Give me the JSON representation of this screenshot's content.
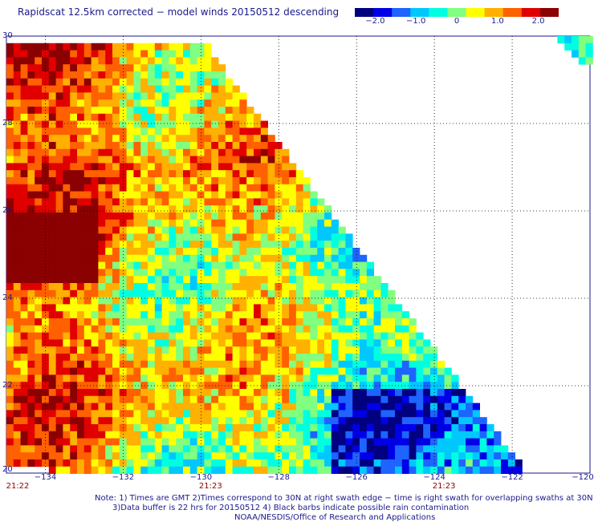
{
  "title": "Rapidscat 12.5km corrected − model winds 20150512 descending",
  "colorbar": {
    "ticks": [
      "−2.0",
      "−1.0",
      "0",
      "1.0",
      "2.0"
    ],
    "tick_values": [
      -2.0,
      -1.0,
      0,
      1.0,
      2.0
    ],
    "range": [
      -2.5,
      2.5
    ],
    "colors": [
      "#000080",
      "#0000e6",
      "#1e64ff",
      "#00c8ff",
      "#00ffe0",
      "#80ff80",
      "#ffff00",
      "#ffb000",
      "#ff6000",
      "#e00000",
      "#8b0000"
    ]
  },
  "map": {
    "lat_ticks": [
      "30",
      "28",
      "26",
      "24",
      "22",
      "20"
    ],
    "lat_values": [
      30,
      28,
      26,
      24,
      22,
      20
    ],
    "lon_ticks": [
      "−134",
      "−132",
      "−130",
      "−128",
      "−126",
      "−124",
      "−122",
      "−120"
    ],
    "lon_values": [
      -134,
      -132,
      -130,
      -128,
      -126,
      -124,
      -122,
      -120
    ],
    "lon_range": [
      -135,
      -120
    ],
    "lat_range": [
      20,
      30
    ],
    "times": [
      {
        "label": "21:22",
        "lon": -135
      },
      {
        "label": "21:23",
        "lon": -130
      },
      {
        "label": "21:23",
        "lon": -124
      }
    ],
    "notes": [
      "Note: 1) Times are GMT 2)Times correspond to 30N at right swath edge − time is right swath for overlapping swaths at 30N",
      "3)Data buffer is 22 hrs for 20150512 4) Black barbs indicate possible rain contamination",
      "NOAA/NESDIS/Office of Research and Applications"
    ]
  }
}
